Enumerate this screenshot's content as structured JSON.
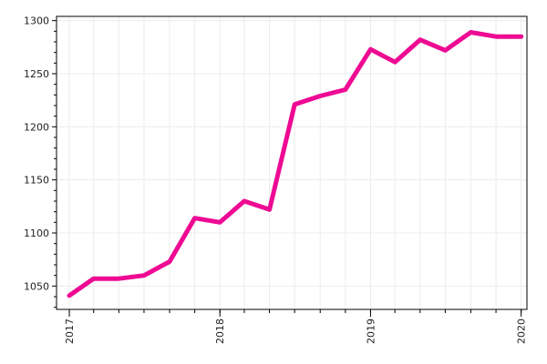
{
  "chart_data": {
    "type": "line",
    "title": "",
    "xlabel": "",
    "ylabel": "",
    "x_tick_labels": [
      {
        "date": "2017-01-01",
        "label": "2017"
      },
      {
        "date": "2018-01-01",
        "label": "2018"
      },
      {
        "date": "2019-01-01",
        "label": "2019"
      },
      {
        "date": "2020-01-01",
        "label": "2020"
      }
    ],
    "y_tick_labels": [
      {
        "value": 1050,
        "label": "1050"
      },
      {
        "value": 1100,
        "label": "1100"
      },
      {
        "value": 1150,
        "label": "1150"
      },
      {
        "value": 1200,
        "label": "1200"
      },
      {
        "value": 1250,
        "label": "1250"
      },
      {
        "value": 1300,
        "label": "1300"
      }
    ],
    "xlim": [
      "2016-12-01",
      "2020-01-15"
    ],
    "ylim": [
      1028,
      1304
    ],
    "grid": true,
    "legend": "none",
    "series": [
      {
        "color": "#ee0a93",
        "x": [
          "2017-01-01",
          "2017-03-01",
          "2017-05-01",
          "2017-07-01",
          "2017-09-01",
          "2017-11-01",
          "2018-01-01",
          "2018-03-01",
          "2018-05-01",
          "2018-07-01",
          "2018-09-01",
          "2018-11-01",
          "2019-01-01",
          "2019-03-01",
          "2019-05-01",
          "2019-07-01",
          "2019-09-01",
          "2019-11-01",
          "2020-01-01"
        ],
        "y": [
          1041,
          1057,
          1057,
          1060,
          1073,
          1114,
          1110,
          1130,
          1122,
          1221,
          1229,
          1235,
          1273,
          1261,
          1282,
          1272,
          1289,
          1285,
          1285
        ]
      }
    ]
  }
}
